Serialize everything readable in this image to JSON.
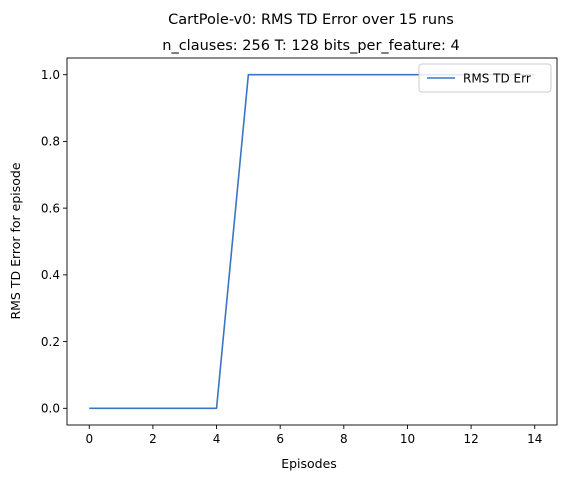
{
  "chart_data": {
    "type": "line",
    "title": "CartPole-v0: RMS TD Error over 15 runs",
    "subtitle": "n_clauses: 256 T: 128 bits_per_feature: 4",
    "xlabel": "Episodes",
    "ylabel": "RMS TD Error for episode",
    "xlim": [
      -0.7,
      14.7
    ],
    "ylim": [
      -0.05,
      1.05
    ],
    "x_ticks": [
      0,
      2,
      4,
      6,
      8,
      10,
      12,
      14
    ],
    "x_tick_labels": [
      "0",
      "2",
      "4",
      "6",
      "8",
      "10",
      "12",
      "14"
    ],
    "y_ticks": [
      0.0,
      0.2,
      0.4,
      0.6,
      0.8,
      1.0
    ],
    "y_tick_labels": [
      "0.0",
      "0.2",
      "0.4",
      "0.6",
      "0.8",
      "1.0"
    ],
    "grid": false,
    "legend_position": "top-right",
    "series": [
      {
        "name": "RMS TD Err",
        "color": "#3a75c4",
        "x": [
          0,
          1,
          2,
          3,
          4,
          5,
          6,
          7,
          8,
          9,
          10,
          11,
          12,
          13,
          14
        ],
        "y": [
          0,
          0,
          0,
          0,
          0,
          1,
          1,
          1,
          1,
          1,
          1,
          1,
          1,
          1,
          1
        ]
      }
    ]
  }
}
